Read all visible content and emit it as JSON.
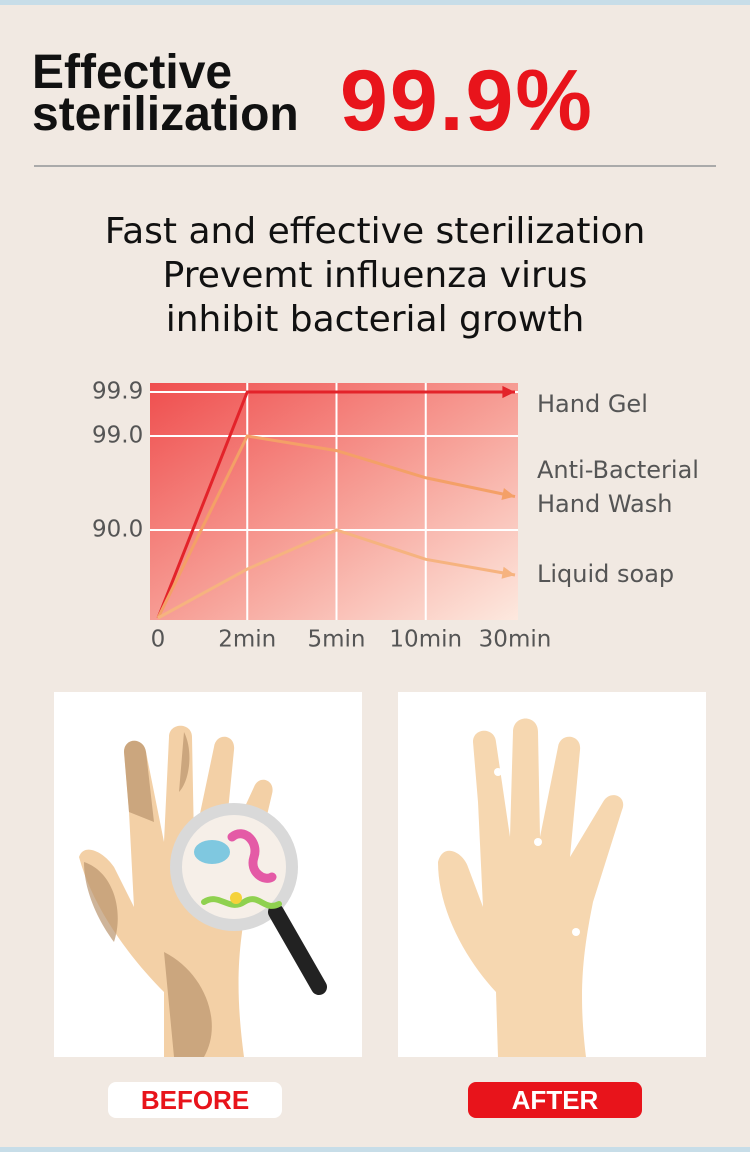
{
  "header": {
    "title_lines": [
      "Effective",
      "sterilization"
    ],
    "highlight": "99.9%"
  },
  "subtitle_lines": [
    "Fast and effective sterilization",
    "Prevemt influenza virus",
    "inhibit bacterial growth"
  ],
  "chart_data": {
    "type": "line",
    "x": [
      "0",
      "2min",
      "5min",
      "10min",
      "30min"
    ],
    "ylim": [
      0,
      99.9
    ],
    "yticks": [
      99.9,
      {
        "value": 99,
        "label": "99.0"
      },
      {
        "value": 90,
        "label": "90.0"
      }
    ],
    "grid": true,
    "series": [
      {
        "name": "Hand Gel",
        "color": "#e3232a",
        "values": [
          0,
          99.9,
          99.9,
          99.9,
          99.9
        ]
      },
      {
        "name": "Anti-Bacterial Hand Wash",
        "color": "#f4a067",
        "values": [
          0,
          99,
          97.6,
          95,
          93.2
        ]
      },
      {
        "name": "Liquid soap",
        "color": "#f6b37f",
        "values": [
          0,
          50,
          90,
          60,
          44
        ]
      }
    ]
  },
  "panels": [
    {
      "label": "BEFORE"
    },
    {
      "label": "AFTER"
    }
  ]
}
